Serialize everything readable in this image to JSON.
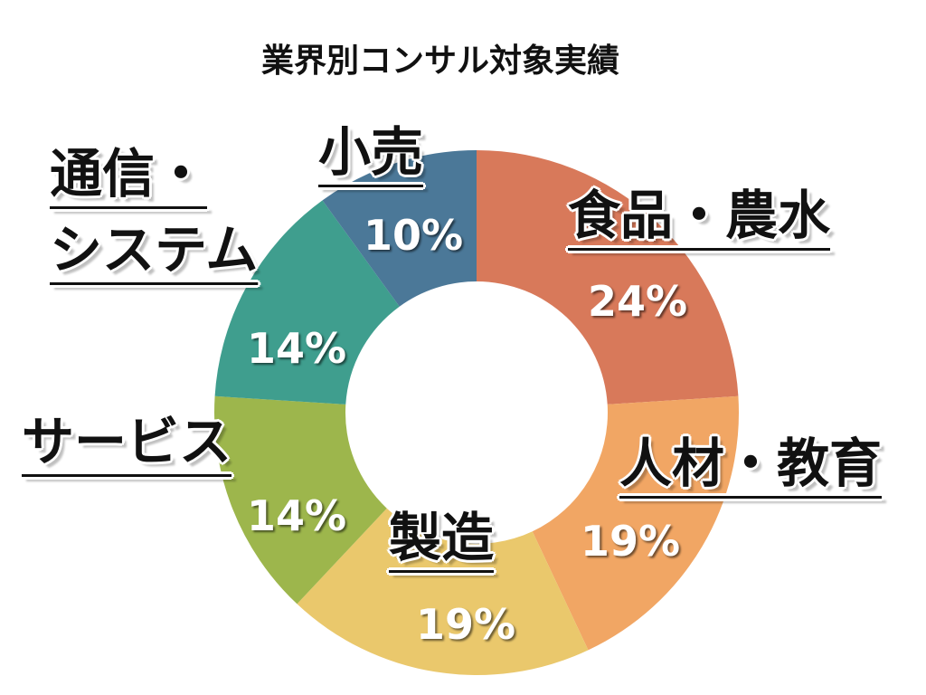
{
  "chart_data": {
    "type": "donut",
    "title": "業界別コンサル対象実績",
    "categories": [
      "食品・農水",
      "人材・教育",
      "製造",
      "サービス",
      "通信・\nシステム",
      "小売"
    ],
    "values": [
      24,
      19,
      19,
      14,
      14,
      10
    ],
    "value_labels": [
      "24%",
      "19%",
      "19%",
      "14%",
      "14%",
      "10%"
    ],
    "colors": [
      "#d8795a",
      "#f1a664",
      "#eac86c",
      "#9db64c",
      "#3f9e8e",
      "#4b7898"
    ]
  }
}
